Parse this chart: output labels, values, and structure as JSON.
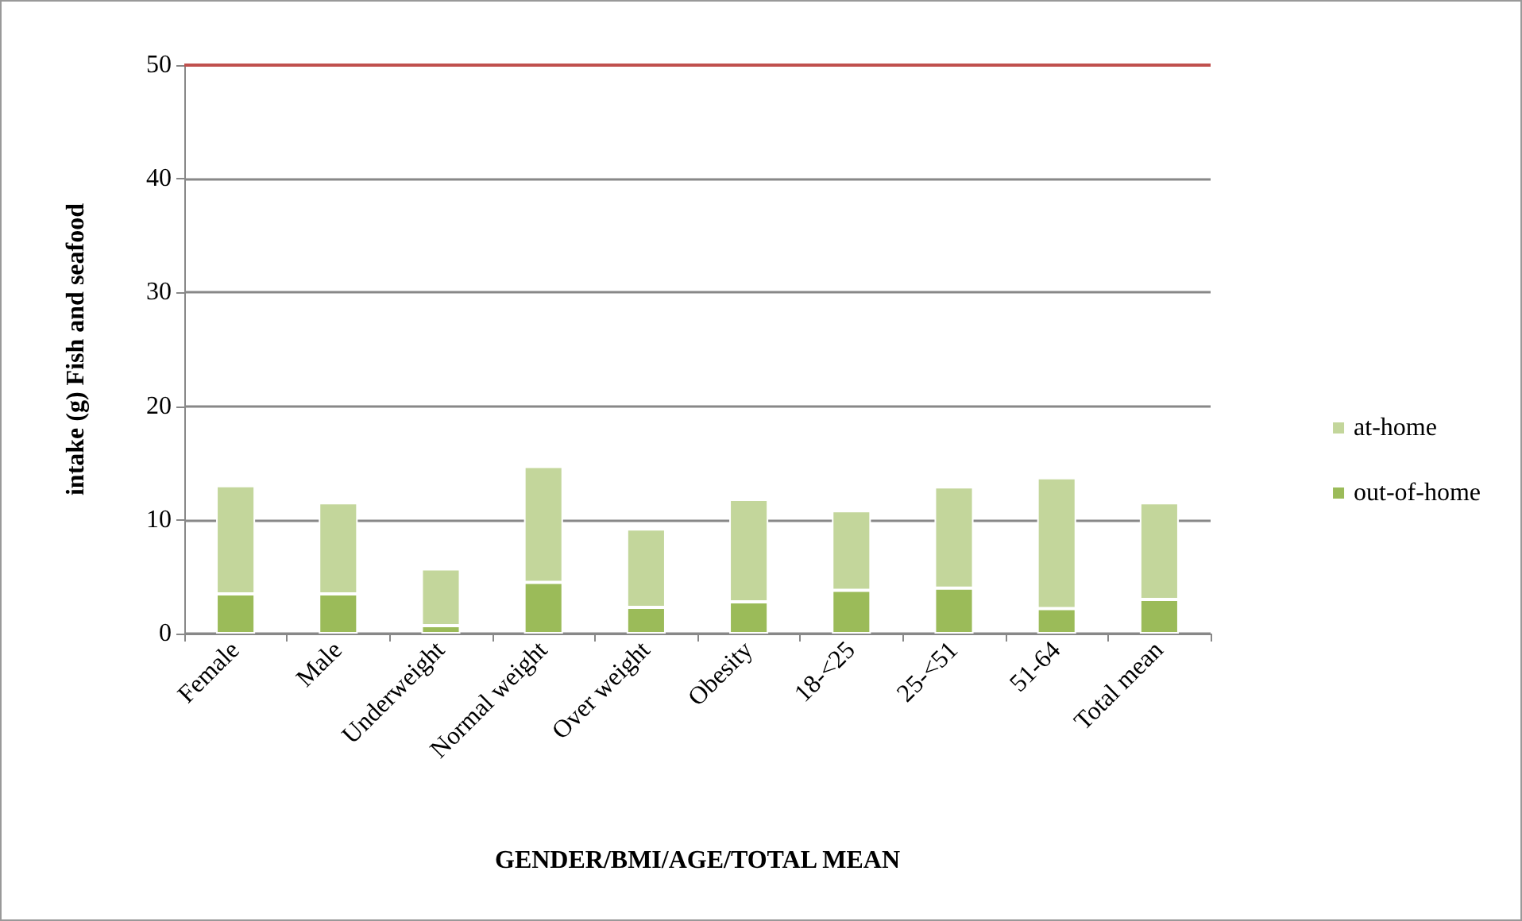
{
  "chart_data": {
    "type": "bar",
    "stacked": true,
    "xlabel": "GENDER/BMI/AGE/TOTAL MEAN",
    "ylabel": "intake (g) Fish and seafood",
    "categories": [
      "Female",
      "Male",
      "Underweight",
      "Normal weight",
      "Over weight",
      "Obesity",
      "18-<25",
      "25-<51",
      "51-64",
      "Total mean"
    ],
    "series": [
      {
        "name": "out-of-home",
        "color": "#9bbb59",
        "values": [
          3.5,
          3.5,
          0.7,
          4.5,
          2.3,
          2.8,
          3.8,
          4.0,
          2.2,
          3.0
        ]
      },
      {
        "name": "at-home",
        "color": "#c3d69b",
        "values": [
          9.5,
          8.0,
          5.0,
          10.2,
          6.9,
          9.0,
          7.0,
          8.9,
          11.5,
          8.5
        ]
      }
    ],
    "ylim": [
      0,
      50
    ],
    "yticks": [
      0,
      10,
      20,
      30,
      40,
      50
    ],
    "grid": "y",
    "legend": "right",
    "ref_lines": [
      {
        "axis": "y",
        "value": 50,
        "color": "#c0504d"
      }
    ]
  }
}
